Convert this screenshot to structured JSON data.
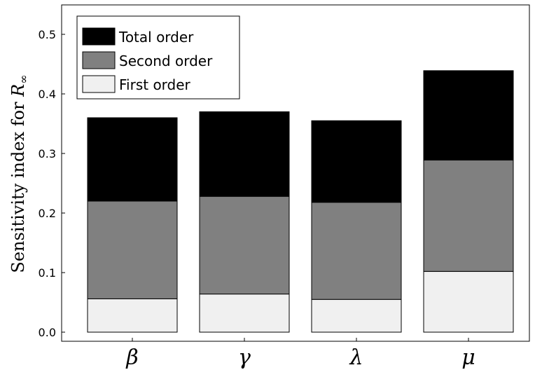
{
  "chart_data": {
    "type": "bar",
    "stacked": true,
    "categories": [
      "β",
      "γ",
      "λ",
      "μ"
    ],
    "series": [
      {
        "name": "First order",
        "values": [
          0.056,
          0.064,
          0.055,
          0.102
        ],
        "color": "#f0f0f0"
      },
      {
        "name": "Second order",
        "values": [
          0.164,
          0.164,
          0.163,
          0.187
        ],
        "color": "#808080"
      },
      {
        "name": "Total order",
        "values": [
          0.14,
          0.142,
          0.137,
          0.15
        ],
        "color": "#000000"
      }
    ],
    "legend_order": [
      "Total order",
      "Second order",
      "First order"
    ],
    "legend_position": "top-left",
    "title": "",
    "xlabel": "",
    "ylabel_text": "Sensitivity index for ",
    "ylabel_var": "R",
    "ylabel_sub": "∞",
    "ylim": [
      0,
      0.55
    ],
    "yticks": [
      "0.0",
      "0.1",
      "0.2",
      "0.3",
      "0.4",
      "0.5"
    ],
    "grid": false
  }
}
